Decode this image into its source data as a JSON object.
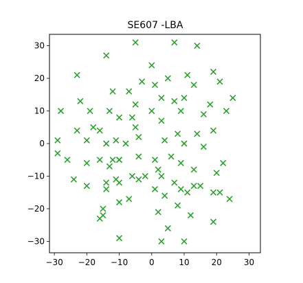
{
  "colors": {
    "marker": "#2ca02c",
    "axis": "#000000",
    "background": "#ffffff"
  },
  "chart_data": {
    "type": "scatter",
    "title": "SE607 -LBA",
    "xlabel": "",
    "ylabel": "",
    "xlim": [
      -31.5,
      33.5
    ],
    "ylim": [
      -33.5,
      33.5
    ],
    "xticks": [
      -30,
      -20,
      -10,
      0,
      10,
      20,
      30
    ],
    "yticks": [
      -30,
      -20,
      -10,
      0,
      10,
      20,
      30
    ],
    "xtick_labels": [
      "−30",
      "−20",
      "−10",
      "0",
      "10",
      "20",
      "30"
    ],
    "ytick_labels": [
      "−30",
      "−20",
      "−10",
      "0",
      "10",
      "20",
      "30"
    ],
    "grid": false,
    "marker": "x",
    "series": [
      {
        "x": [
          -5,
          7,
          14,
          -14,
          5,
          0,
          -23,
          -14,
          11,
          19,
          -4,
          13,
          21,
          -12,
          1,
          7,
          -19,
          -22,
          -13,
          -10,
          10,
          18,
          25,
          -3,
          3,
          -10,
          9,
          16,
          -28,
          -5,
          3,
          -16,
          -7,
          0,
          14,
          23,
          -23,
          -5,
          8,
          -18,
          -11,
          -4,
          19,
          -29,
          -20,
          -14,
          4,
          10,
          -8,
          16,
          -29,
          -4,
          -6,
          -12,
          13,
          -26,
          1,
          6,
          -10,
          2,
          9,
          -20,
          -16,
          13,
          22,
          -2,
          3,
          -13,
          7,
          20,
          -10,
          11,
          -6,
          -24,
          -11,
          -20,
          9,
          15,
          24,
          -14,
          -15,
          -10,
          21,
          4,
          1,
          8,
          -16,
          19,
          -15,
          -7,
          2,
          12,
          19,
          5,
          -10,
          3,
          10
        ],
        "y": [
          31,
          31,
          30,
          -12,
          20,
          24,
          21,
          27,
          21,
          22,
          -11,
          18,
          19,
          16,
          18,
          13,
          10,
          13,
          10,
          8,
          14,
          12,
          14,
          19,
          14,
          -5,
          10,
          9,
          10,
          12,
          7,
          4,
          16,
          10,
          3,
          10,
          4,
          5,
          3,
          5,
          1,
          -4,
          4,
          1,
          1,
          0,
          1,
          0,
          0,
          -1,
          -3,
          2,
          8,
          -5,
          -8,
          -5,
          -5,
          -4,
          -5,
          -8,
          -6,
          -6,
          -5,
          -13,
          -6,
          -10,
          -10,
          -7,
          -12,
          -9,
          -12,
          -15,
          -10,
          -11,
          -11,
          -13,
          -14,
          -13,
          -17,
          -14,
          -20,
          -18,
          -15,
          -16,
          -14,
          -19,
          -23,
          -15,
          -22,
          -17,
          -21,
          -22,
          -24,
          -26,
          -29,
          -30,
          -30
        ]
      }
    ]
  }
}
